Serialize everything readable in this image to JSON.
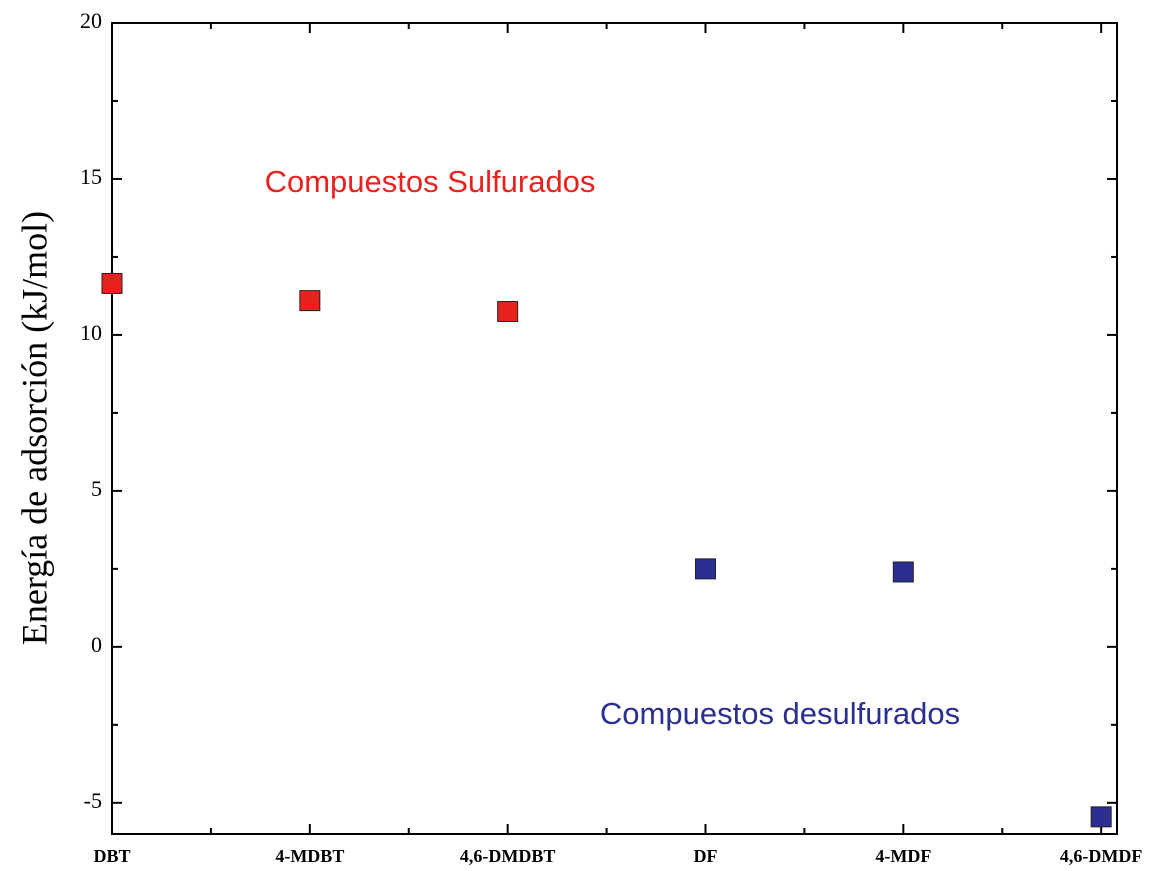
{
  "chart_data": {
    "type": "scatter",
    "ylabel": "Energía de adsorción (kJ/mol)",
    "categories": [
      "DBT",
      "4-MDBT",
      "4,6-DMDBT",
      "DF",
      "4-MDF",
      "4,6-DMDF"
    ],
    "series": [
      {
        "name": "Compuestos Sulfurados",
        "color": "#e8231f",
        "values": [
          11.65,
          11.1,
          10.75,
          null,
          null,
          null
        ]
      },
      {
        "name": "Compuestos desulfurados",
        "color": "#2b2f8f",
        "values": [
          null,
          null,
          null,
          2.5,
          2.4,
          -5.45
        ]
      }
    ],
    "ylim": [
      -6,
      20
    ],
    "yticks": [
      -5,
      0,
      5,
      10,
      15,
      20
    ]
  }
}
